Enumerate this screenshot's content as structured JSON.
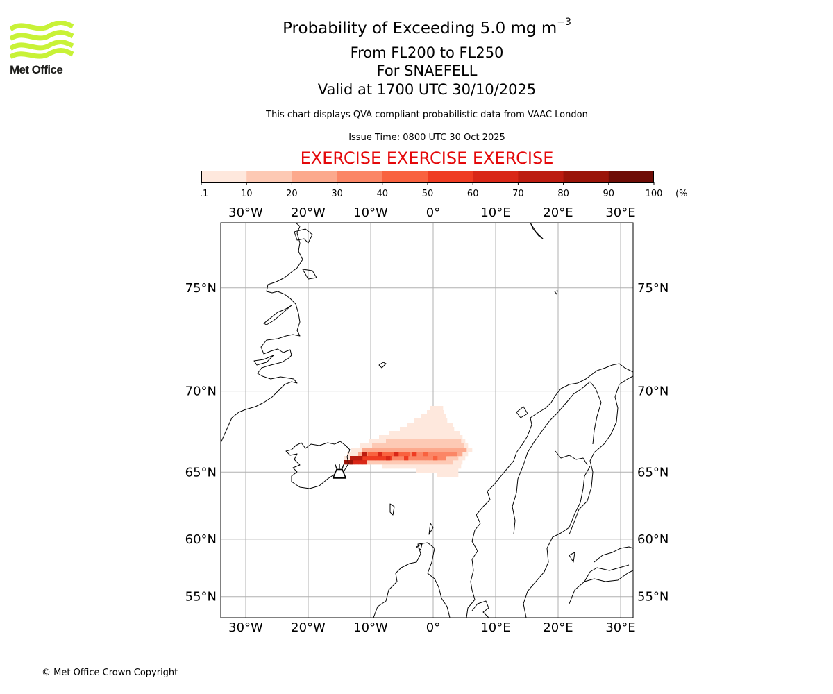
{
  "header": {
    "logo_text": "Met Office",
    "title_prefix": "Probability of Exceeding 5.0 mg m",
    "title_exponent": "−3",
    "flight_levels": "From FL200 to FL250",
    "volcano": "For SNAEFELL",
    "valid_time": "Valid at 1700 UTC 30/10/2025",
    "subtitle": "This chart displays QVA compliant probabilistic data from VAAC London",
    "issue_time": "Issue Time: 0800 UTC 30 Oct 2025",
    "exercise_banner": "EXERCISE EXERCISE EXERCISE"
  },
  "colorbar": {
    "unit": "(%)",
    "tick_labels": [
      "0.1",
      "10",
      "20",
      "30",
      "40",
      "50",
      "60",
      "70",
      "80",
      "90",
      "100"
    ],
    "colors": [
      "#fee8dd",
      "#fdc9b4",
      "#fca98d",
      "#fb8666",
      "#f9623f",
      "#ef3c22",
      "#d92717",
      "#bc1c10",
      "#9a1409",
      "#6e0c06"
    ]
  },
  "map": {
    "lon_labels": [
      "30°W",
      "20°W",
      "10°W",
      "0°",
      "10°E",
      "20°E",
      "30°E"
    ],
    "lat_labels": [
      "75°N",
      "70°N",
      "65°N",
      "60°N",
      "55°N"
    ],
    "lon_values": [
      -30,
      -20,
      -10,
      0,
      10,
      20,
      30
    ],
    "lat_values": [
      75,
      70,
      65,
      60,
      55
    ],
    "extent": {
      "lon_min": -34,
      "lon_max": 32,
      "lat_min": 53,
      "lat_max": 77.5
    },
    "source_volcano": {
      "name": "SNAEFELL",
      "lon": -15.0,
      "lat": 64.8
    },
    "coastline_color": "#000000",
    "grid_color": "#b0b0b0"
  },
  "footer": {
    "copyright": "© Met Office Crown Copyright"
  }
}
